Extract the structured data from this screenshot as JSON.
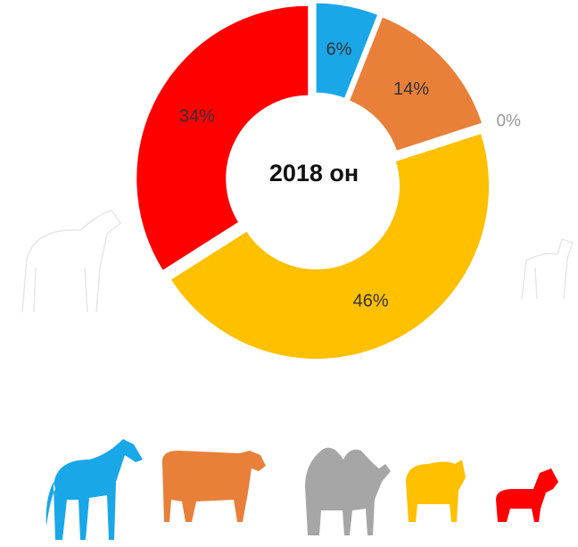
{
  "chart_data": {
    "type": "donut",
    "center_text": "2018 он",
    "categories": [
      null,
      null,
      null,
      null,
      null
    ],
    "values": [
      6,
      14,
      0,
      46,
      34
    ],
    "value_labels": [
      "6%",
      "14%",
      "0%",
      "46%",
      "34%"
    ],
    "colors": [
      "#1aa7e8",
      "#e8803a",
      "#a6a6a6",
      "#ffc000",
      "#ff0000"
    ]
  }
}
